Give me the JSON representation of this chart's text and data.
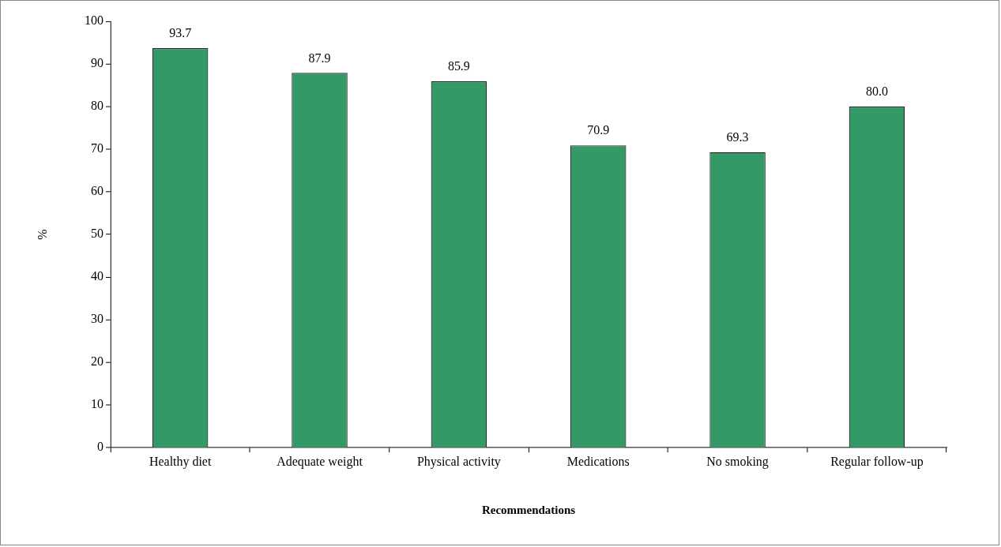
{
  "chart_data": {
    "type": "bar",
    "categories": [
      "Healthy diet",
      "Adequate weight",
      "Physical activity",
      "Medications",
      "No smoking",
      "Regular follow-up"
    ],
    "values": [
      93.7,
      87.9,
      85.9,
      70.9,
      69.3,
      80.0
    ],
    "value_labels": [
      "93.7",
      "87.9",
      "85.9",
      "70.9",
      "69.3",
      "80.0"
    ],
    "color": "#339966",
    "xlabel": "Recommendations",
    "ylabel": "%",
    "ylim": [
      0,
      100
    ],
    "yticks": [
      0,
      10,
      20,
      30,
      40,
      50,
      60,
      70,
      80,
      90,
      100
    ],
    "grid": false,
    "legend": false
  }
}
